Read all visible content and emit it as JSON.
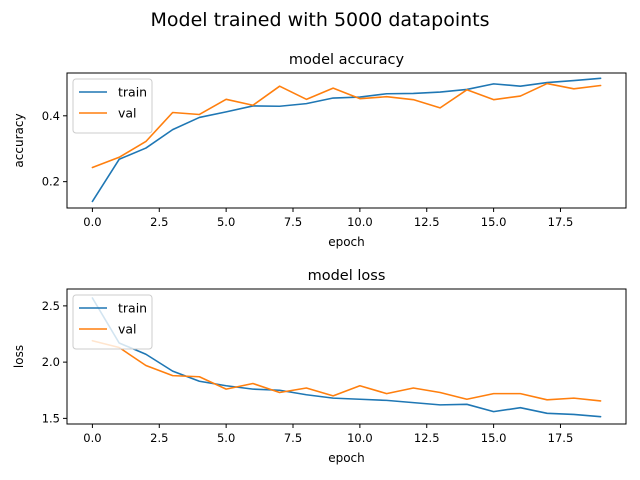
{
  "figure": {
    "suptitle": "Model trained with 5000 datapoints"
  },
  "chart_data": [
    {
      "type": "line",
      "title": "model accuracy",
      "xlabel": "epoch",
      "ylabel": "accuracy",
      "xlim": [
        -0.95,
        19.95
      ],
      "ylim": [
        0.12,
        0.53
      ],
      "xticks": [
        0.0,
        2.5,
        5.0,
        7.5,
        10.0,
        12.5,
        15.0,
        17.5
      ],
      "xtick_labels": [
        "0.0",
        "2.5",
        "5.0",
        "7.5",
        "10.0",
        "12.5",
        "15.0",
        "17.5"
      ],
      "yticks": [
        0.2,
        0.4
      ],
      "ytick_labels": [
        "0.2",
        "0.4"
      ],
      "x": [
        0,
        1,
        2,
        3,
        4,
        5,
        6,
        7,
        8,
        9,
        10,
        11,
        12,
        13,
        14,
        15,
        16,
        17,
        18,
        19
      ],
      "series": [
        {
          "name": "train",
          "color": "#1f77b4",
          "values": [
            0.14,
            0.268,
            0.302,
            0.358,
            0.395,
            0.412,
            0.43,
            0.429,
            0.437,
            0.454,
            0.457,
            0.467,
            0.468,
            0.472,
            0.48,
            0.497,
            0.49,
            0.501,
            0.507,
            0.514
          ]
        },
        {
          "name": "val",
          "color": "#ff7f0e",
          "values": [
            0.243,
            0.274,
            0.322,
            0.41,
            0.404,
            0.45,
            0.432,
            0.49,
            0.45,
            0.484,
            0.452,
            0.458,
            0.449,
            0.424,
            0.479,
            0.449,
            0.46,
            0.498,
            0.482,
            0.492
          ]
        }
      ],
      "legend": "upper left",
      "grid": false
    },
    {
      "type": "line",
      "title": "model loss",
      "xlabel": "epoch",
      "ylabel": "loss",
      "xlim": [
        -0.95,
        19.95
      ],
      "ylim": [
        1.45,
        2.65
      ],
      "xticks": [
        0.0,
        2.5,
        5.0,
        7.5,
        10.0,
        12.5,
        15.0,
        17.5
      ],
      "xtick_labels": [
        "0.0",
        "2.5",
        "5.0",
        "7.5",
        "10.0",
        "12.5",
        "15.0",
        "17.5"
      ],
      "yticks": [
        1.5,
        2.0,
        2.5
      ],
      "ytick_labels": [
        "1.5",
        "2.0",
        "2.5"
      ],
      "x": [
        0,
        1,
        2,
        3,
        4,
        5,
        6,
        7,
        8,
        9,
        10,
        11,
        12,
        13,
        14,
        15,
        16,
        17,
        18,
        19
      ],
      "series": [
        {
          "name": "train",
          "color": "#1f77b4",
          "values": [
            2.57,
            2.17,
            2.07,
            1.92,
            1.83,
            1.79,
            1.76,
            1.75,
            1.71,
            1.68,
            1.67,
            1.66,
            1.64,
            1.62,
            1.625,
            1.56,
            1.595,
            1.545,
            1.535,
            1.515
          ]
        },
        {
          "name": "val",
          "color": "#ff7f0e",
          "values": [
            2.19,
            2.13,
            1.97,
            1.88,
            1.87,
            1.76,
            1.81,
            1.73,
            1.77,
            1.7,
            1.79,
            1.72,
            1.77,
            1.73,
            1.67,
            1.72,
            1.72,
            1.665,
            1.68,
            1.655
          ]
        }
      ],
      "legend": "upper left",
      "grid": false
    }
  ]
}
